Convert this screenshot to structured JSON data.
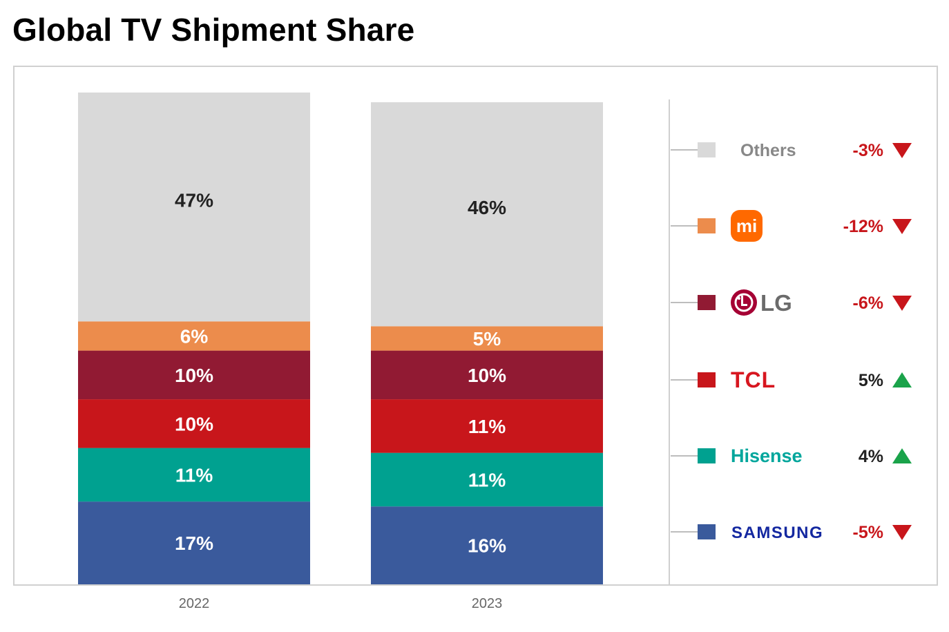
{
  "title": "Global TV Shipment Share",
  "chart_data": {
    "type": "bar",
    "stacked": true,
    "title": "Global TV Shipment Share",
    "categories": [
      "2022",
      "2023"
    ],
    "ylim": [
      0,
      100
    ],
    "grid": false,
    "legend_position": "right",
    "series": [
      {
        "key": "samsung",
        "legend_label": "SAMSUNG",
        "color": "#3a5a9c",
        "values": [
          17,
          16
        ],
        "labels": [
          "17%",
          "16%"
        ],
        "change": "-5%",
        "trend": "down"
      },
      {
        "key": "hisense",
        "legend_label": "Hisense",
        "color": "#00a190",
        "values": [
          11,
          11
        ],
        "labels": [
          "11%",
          "11%"
        ],
        "change": "4%",
        "trend": "up"
      },
      {
        "key": "tcl",
        "legend_label": "TCL",
        "color": "#c8161b",
        "values": [
          10,
          11
        ],
        "labels": [
          "10%",
          "11%"
        ],
        "change": "5%",
        "trend": "up"
      },
      {
        "key": "lg",
        "legend_label": "LG",
        "color": "#911a33",
        "values": [
          10,
          10
        ],
        "labels": [
          "10%",
          "10%"
        ],
        "change": "-6%",
        "trend": "down"
      },
      {
        "key": "xiaomi",
        "legend_label": "mi",
        "color": "#ec8c4c",
        "values": [
          6,
          5
        ],
        "labels": [
          "6%",
          "5%"
        ],
        "change": "-12%",
        "trend": "down"
      },
      {
        "key": "others",
        "legend_label": "Others",
        "color": "#d9d9d9",
        "values": [
          47,
          46
        ],
        "labels": [
          "47%",
          "46%"
        ],
        "change": "-3%",
        "trend": "down"
      }
    ]
  },
  "colors": {
    "down": "#c8161b",
    "up": "#1aa34a",
    "others_text": "#888888",
    "xiaomi_logo": "#ff6900",
    "lg_logo": "#a50034",
    "lg_text": "#6b6b6b",
    "tcl_text": "#d7161f",
    "hisense_text": "#00a69c",
    "samsung_text": "#1428a0",
    "frame": "#d0d0d0"
  },
  "icons": {
    "down": "down-triangle-icon",
    "up": "up-triangle-icon",
    "xiaomi": "xiaomi-logo-icon",
    "lg": "lg-logo-icon"
  }
}
